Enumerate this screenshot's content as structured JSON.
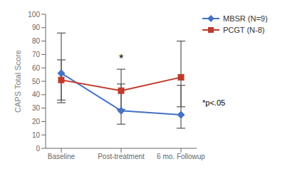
{
  "chart_data": {
    "type": "line",
    "categories": [
      "Baseline",
      "Post-treatment",
      "6 mo. Followup"
    ],
    "series": [
      {
        "name": "MBSR (N=9)",
        "color": "#4472C4",
        "marker": "diamond",
        "values": [
          56,
          28,
          25
        ],
        "error_lower": [
          20,
          10,
          10
        ],
        "error_upper": [
          30,
          20,
          22
        ]
      },
      {
        "name": "PCGT (N-8)",
        "color": "#C0392B",
        "marker": "square",
        "values": [
          51,
          43,
          53
        ],
        "error_lower": [
          17,
          14,
          22
        ],
        "error_upper": [
          15,
          16,
          27
        ]
      }
    ],
    "y_label": "CAPS Total Score",
    "ylim": [
      0,
      100
    ],
    "yticks": [
      0,
      10,
      20,
      30,
      40,
      50,
      60,
      70,
      80,
      90,
      100
    ],
    "grid": false,
    "legend": "right",
    "annotations": [
      {
        "text": "*",
        "category": "Post-treatment",
        "y": 64
      },
      {
        "text": "*p<.05"
      }
    ]
  }
}
